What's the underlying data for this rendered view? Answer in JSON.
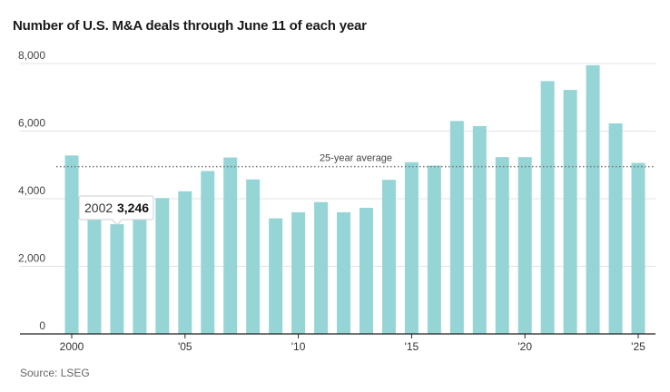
{
  "title": "Number of U.S. M&A deals through June 11 of each year",
  "source": "Source: LSEG",
  "chart_data": {
    "type": "bar",
    "title": "Number of U.S. M&A deals through June 11 of each year",
    "xlabel": "",
    "ylabel": "",
    "ylim": [
      0,
      8000
    ],
    "y_ticks": [
      0,
      2000,
      4000,
      6000,
      8000
    ],
    "y_tick_labels": [
      "0",
      "2,000",
      "4,000",
      "6,000",
      "8,000"
    ],
    "categories": [
      "2000",
      "2001",
      "2002",
      "2003",
      "2004",
      "2005",
      "2006",
      "2007",
      "2008",
      "2009",
      "2010",
      "2011",
      "2012",
      "2013",
      "2014",
      "2015",
      "2016",
      "2017",
      "2018",
      "2019",
      "2020",
      "2021",
      "2022",
      "2023",
      "2024",
      "2025"
    ],
    "x_tick_labels": [
      {
        "category": "2000",
        "label": "2000"
      },
      {
        "category": "2005",
        "label": "'05"
      },
      {
        "category": "2010",
        "label": "'10"
      },
      {
        "category": "2015",
        "label": "'15"
      },
      {
        "category": "2020",
        "label": "'20"
      },
      {
        "category": "2025",
        "label": "'25"
      }
    ],
    "values": [
      5280,
      3500,
      3246,
      3480,
      4020,
      4220,
      4820,
      5220,
      4570,
      3420,
      3600,
      3900,
      3600,
      3730,
      4560,
      5080,
      4980,
      6300,
      6150,
      5230,
      5230,
      7480,
      7220,
      7950,
      6230,
      5060
    ],
    "average": {
      "label": "25-year average",
      "value": 4950
    },
    "tooltip": {
      "category": "2002",
      "year": "2002",
      "value_label": "3,246"
    },
    "bar_color": "#96d5d6",
    "grid": true
  }
}
